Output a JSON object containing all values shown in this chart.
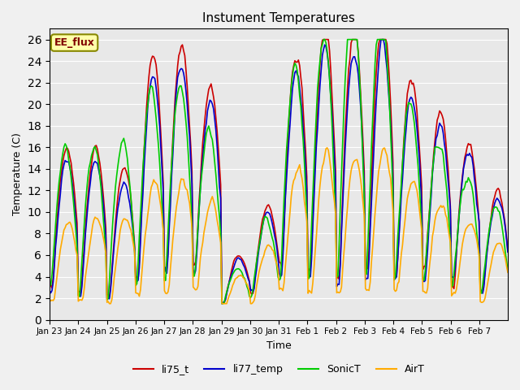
{
  "title": "Instument Temperatures",
  "xlabel": "Time",
  "ylabel": "Temperature (C)",
  "ylim": [
    0,
    27
  ],
  "yticks": [
    0,
    2,
    4,
    6,
    8,
    10,
    12,
    14,
    16,
    18,
    20,
    22,
    24,
    26
  ],
  "annotation": "EE_flux",
  "series_colors": {
    "li75_t": "#cc0000",
    "li77_temp": "#0000cc",
    "SonicT": "#00cc00",
    "AirT": "#ffaa00"
  },
  "bg_color": "#e8e8e8",
  "grid_color": "#ffffff",
  "linewidth": 1.2,
  "days": [
    "Jan 23",
    "Jan 24",
    "Jan 25",
    "Jan 26",
    "Jan 27",
    "Jan 28",
    "Jan 29",
    "Jan 30",
    "Jan 31",
    "Feb 1",
    "Feb 2",
    "Feb 3",
    "Feb 4",
    "Feb 5",
    "Feb 6",
    "Feb 7"
  ]
}
